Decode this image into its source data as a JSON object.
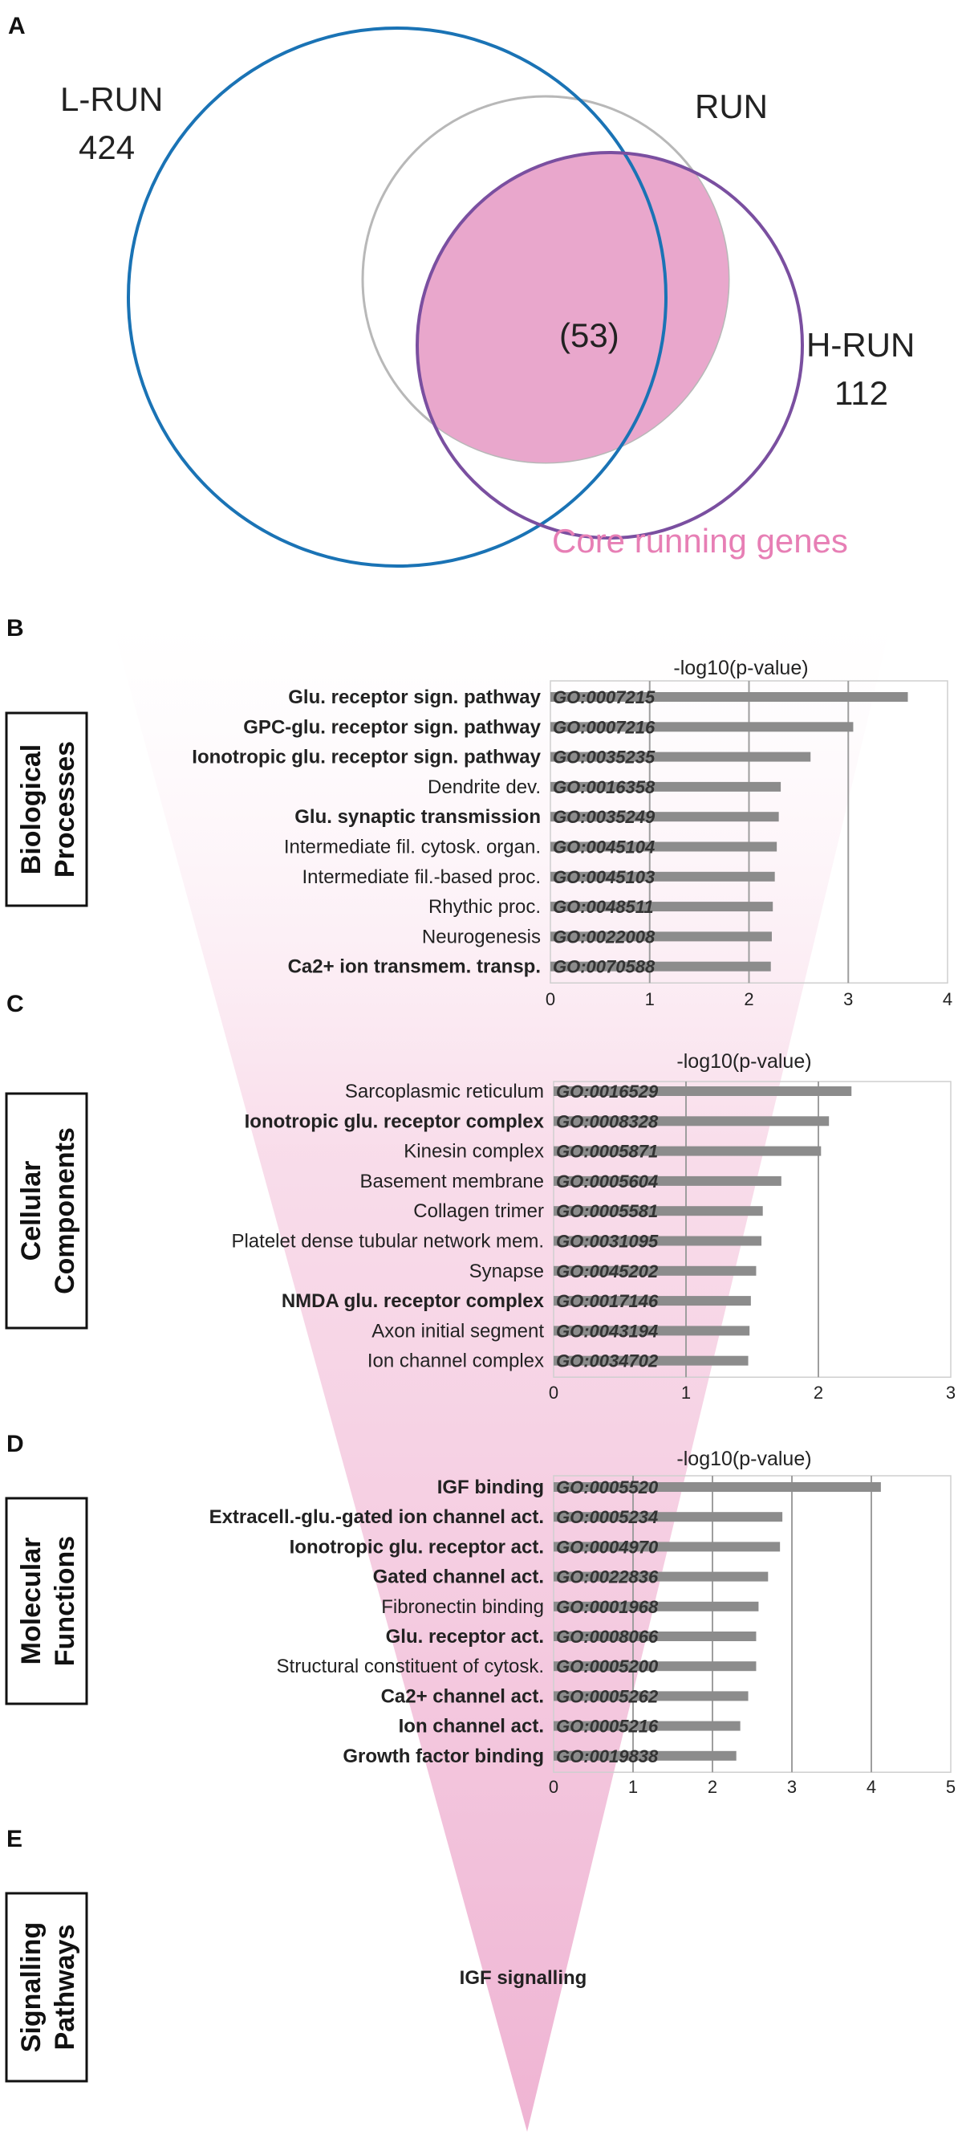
{
  "colors": {
    "lrun_circle": "#1a73b5",
    "run_circle": "#b8b8b8",
    "hrun_circle": "#7a4fa0",
    "core_fill": "#e9a7cc",
    "core_text": "#e77fb5",
    "funnel": "#efb4d3",
    "bar": "#8c8c8c"
  },
  "venn": {
    "letter": "A",
    "lrun_name": "L-RUN",
    "lrun_count": "424",
    "run_name": "RUN",
    "hrun_name": "H-RUN",
    "hrun_count": "112",
    "core_count": "(53)",
    "core_label": "Core running genes"
  },
  "chart_data": [
    {
      "type": "bar",
      "orientation": "horizontal",
      "letter": "B",
      "side_title": [
        "Biological",
        "Processes"
      ],
      "xlabel": "-log10(p-value)",
      "xlim": [
        0,
        4
      ],
      "xticks": [
        "0",
        "1",
        "2",
        "3",
        "4"
      ],
      "categories": [
        {
          "label": "Glu. receptor sign. pathway",
          "go": "GO:0007215",
          "value": 3.6,
          "bold": true
        },
        {
          "label": "GPC-glu. receptor sign. pathway",
          "go": "GO:0007216",
          "value": 3.05,
          "bold": true
        },
        {
          "label": "Ionotropic glu. receptor sign. pathway",
          "go": "GO:0035235",
          "value": 2.62,
          "bold": true
        },
        {
          "label": "Dendrite dev.",
          "go": "GO:0016358",
          "value": 2.32,
          "bold": false
        },
        {
          "label": "Glu. synaptic transmission",
          "go": "GO:0035249",
          "value": 2.3,
          "bold": true
        },
        {
          "label": "Intermediate fil. cytosk. organ.",
          "go": "GO:0045104",
          "value": 2.28,
          "bold": false
        },
        {
          "label": "Intermediate fil.-based proc.",
          "go": "GO:0045103",
          "value": 2.26,
          "bold": false
        },
        {
          "label": "Rhythic proc.",
          "go": "GO:0048511",
          "value": 2.24,
          "bold": false
        },
        {
          "label": "Neurogenesis",
          "go": "GO:0022008",
          "value": 2.23,
          "bold": false
        },
        {
          "label": "Ca2+ ion transmem. transp.",
          "go": "GO:0070588",
          "value": 2.22,
          "bold": true
        }
      ]
    },
    {
      "type": "bar",
      "orientation": "horizontal",
      "letter": "C",
      "side_title": [
        "Cellular",
        "Components"
      ],
      "xlabel": "-log10(p-value)",
      "xlim": [
        0,
        3
      ],
      "xticks": [
        "0",
        "1",
        "2",
        "3"
      ],
      "categories": [
        {
          "label": "Sarcoplasmic reticulum",
          "go": "GO:0016529",
          "value": 2.25,
          "bold": false
        },
        {
          "label": "Ionotropic glu. receptor complex",
          "go": "GO:0008328",
          "value": 2.08,
          "bold": true
        },
        {
          "label": "Kinesin complex",
          "go": "GO:0005871",
          "value": 2.02,
          "bold": false
        },
        {
          "label": "Basement membrane",
          "go": "GO:0005604",
          "value": 1.72,
          "bold": false
        },
        {
          "label": "Collagen trimer",
          "go": "GO:0005581",
          "value": 1.58,
          "bold": false
        },
        {
          "label": "Platelet dense tubular network mem.",
          "go": "GO:0031095",
          "value": 1.57,
          "bold": false
        },
        {
          "label": "Synapse",
          "go": "GO:0045202",
          "value": 1.53,
          "bold": false
        },
        {
          "label": "NMDA glu. receptor complex",
          "go": "GO:0017146",
          "value": 1.49,
          "bold": true
        },
        {
          "label": "Axon initial segment",
          "go": "GO:0043194",
          "value": 1.48,
          "bold": false
        },
        {
          "label": "Ion channel complex",
          "go": "GO:0034702",
          "value": 1.47,
          "bold": false
        }
      ]
    },
    {
      "type": "bar",
      "orientation": "horizontal",
      "letter": "D",
      "side_title": [
        "Molecular",
        "Functions"
      ],
      "xlabel": "-log10(p-value)",
      "xlim": [
        0,
        5
      ],
      "xticks": [
        "0",
        "1",
        "2",
        "3",
        "4",
        "5"
      ],
      "categories": [
        {
          "label": "IGF binding",
          "go": "GO:0005520",
          "value": 4.12,
          "bold": true
        },
        {
          "label": "Extracell.-glu.-gated ion channel act.",
          "go": "GO:0005234",
          "value": 2.88,
          "bold": true
        },
        {
          "label": "Ionotropic glu. receptor act.",
          "go": "GO:0004970",
          "value": 2.85,
          "bold": true
        },
        {
          "label": "Gated channel act.",
          "go": "GO:0022836",
          "value": 2.7,
          "bold": true
        },
        {
          "label": "Fibronectin binding",
          "go": "GO:0001968",
          "value": 2.58,
          "bold": false
        },
        {
          "label": "Glu. receptor act.",
          "go": "GO:0008066",
          "value": 2.55,
          "bold": true
        },
        {
          "label": "Structural constituent of cytosk.",
          "go": "GO:0005200",
          "value": 2.55,
          "bold": false
        },
        {
          "label": "Ca2+ channel act.",
          "go": "GO:0005262",
          "value": 2.45,
          "bold": true
        },
        {
          "label": "Ion channel act.",
          "go": "GO:0005216",
          "value": 2.35,
          "bold": true
        },
        {
          "label": "Growth factor binding",
          "go": "GO:0019838",
          "value": 2.3,
          "bold": true
        }
      ]
    }
  ],
  "pathways": {
    "letter": "E",
    "side_title": [
      "Signalling",
      "Pathways"
    ],
    "label": "IGF signalling"
  }
}
